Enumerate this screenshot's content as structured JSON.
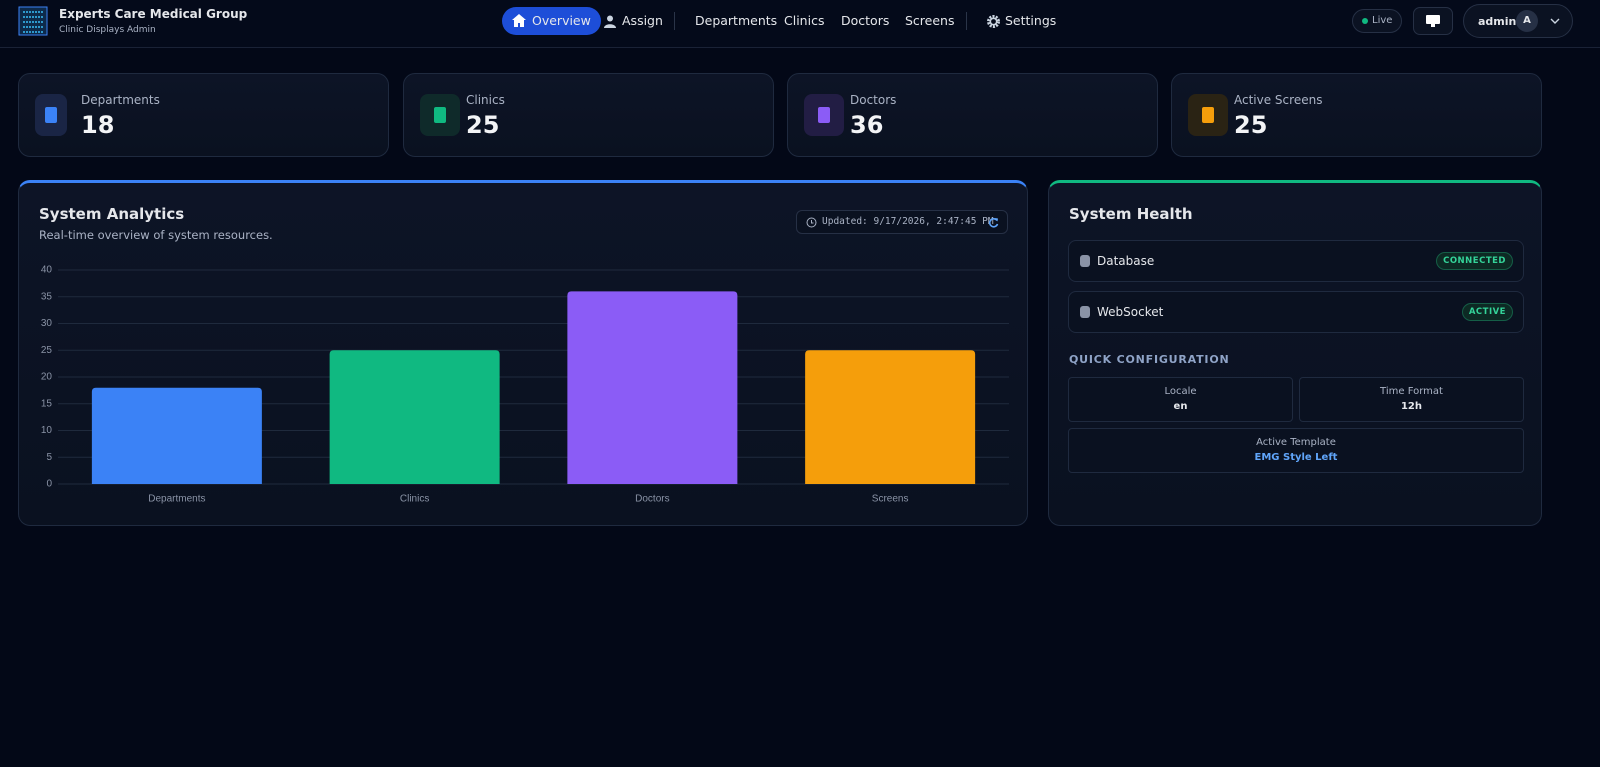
{
  "header": {
    "title": "Experts Care Medical Group",
    "subtitle": "Clinic Displays Admin",
    "nav": [
      "Overview",
      "Assign",
      "Departments",
      "Clinics",
      "Doctors",
      "Screens",
      "Settings"
    ],
    "status": "Live",
    "user": "admin",
    "avatar": "A"
  },
  "stats": [
    {
      "label": "Departments",
      "value": 18
    },
    {
      "label": "Clinics",
      "value": 25
    },
    {
      "label": "Doctors",
      "value": 36
    },
    {
      "label": "Active Screens",
      "value": 25
    }
  ],
  "analytics": {
    "title": "System Analytics",
    "subtitle": "Real-time overview of system resources.",
    "updated": "Updated: 9/17/2026, 2:47:45 PM"
  },
  "chart_data": {
    "type": "bar",
    "categories": [
      "Departments",
      "Clinics",
      "Doctors",
      "Screens"
    ],
    "values": [
      18,
      25,
      36,
      25
    ],
    "colors": [
      "#3b82f6",
      "#10b981",
      "#8b5cf6",
      "#f59e0b"
    ],
    "ylim": [
      0,
      40
    ],
    "yticks": [
      0,
      5,
      10,
      15,
      20,
      25,
      30,
      35,
      40
    ],
    "grid": true
  },
  "health": {
    "title": "System Health",
    "services": [
      {
        "name": "Database",
        "status": "CONNECTED"
      },
      {
        "name": "WebSocket",
        "status": "ACTIVE"
      }
    ],
    "config_title": "QUICK CONFIGURATION",
    "config": [
      {
        "label": "Locale",
        "value": "en"
      },
      {
        "label": "Time Format",
        "value": "12h"
      },
      {
        "label": "Active Template",
        "value": "EMG Style Left"
      }
    ]
  }
}
